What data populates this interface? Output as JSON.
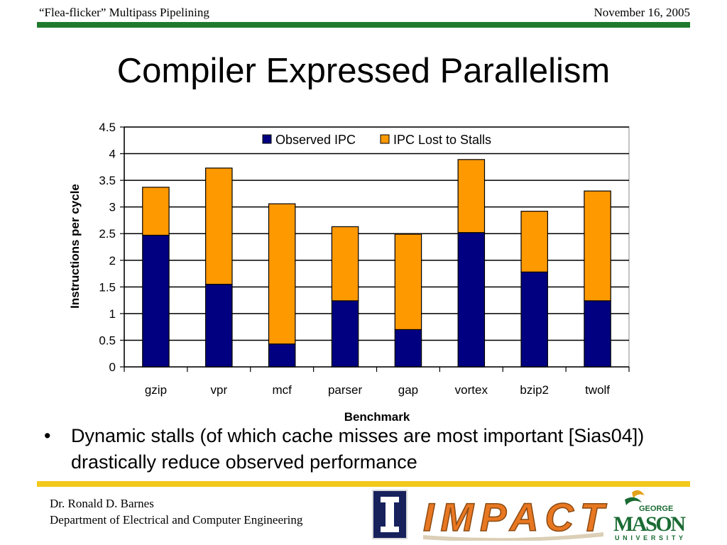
{
  "header": {
    "left_text": "“Flea-flicker” Multipass Pipelining",
    "right_text": "November 16, 2005"
  },
  "title": "Compiler Expressed Parallelism",
  "colors": {
    "header_line": "#1f7a2e",
    "footer_line": "#f2c81b",
    "observed": "#000080",
    "lost": "#ff9900",
    "mason_green": "#1a6b33",
    "mason_gold": "#e3a21a",
    "impact_orange": "#e87722",
    "illinois_blue": "#17215c"
  },
  "chart_data": {
    "type": "bar",
    "stacked": true,
    "categories": [
      "gzip",
      "vpr",
      "mcf",
      "parser",
      "gap",
      "vortex",
      "bzip2",
      "twolf"
    ],
    "series": [
      {
        "name": "Observed IPC",
        "values": [
          2.47,
          1.55,
          0.43,
          1.24,
          0.7,
          2.52,
          1.78,
          1.24
        ]
      },
      {
        "name": "IPC Lost to Stalls",
        "values": [
          0.9,
          2.18,
          2.63,
          1.39,
          1.79,
          1.37,
          1.14,
          2.06
        ]
      }
    ],
    "xlabel": "Benchmark",
    "ylabel": "Instructions per cycle",
    "ylim": [
      0,
      4.5
    ],
    "yticks": [
      "0",
      "0.5",
      "1",
      "1.5",
      "2",
      "2.5",
      "3",
      "3.5",
      "4",
      "4.5"
    ],
    "grid": true,
    "legend_position": "top"
  },
  "bullets": [
    "Dynamic stalls (of which cache misses are most important [Sias04]) drastically reduce observed performance"
  ],
  "bullet_symbol": "•",
  "footer": {
    "name": "Dr. Ronald D. Barnes",
    "department": "Department of Electrical and Computer Engineering"
  },
  "logos": {
    "impact_text": "IMPACT",
    "mason_george": "GEORGE",
    "mason_name": "MASON",
    "mason_university": "UNIVERSITY"
  }
}
